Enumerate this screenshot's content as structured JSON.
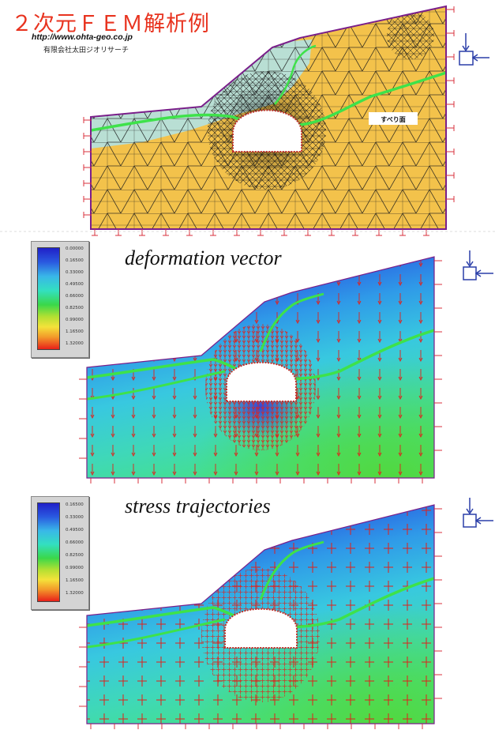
{
  "header": {
    "title": "２次元ＦＥＭ解析例",
    "url": "http://www.ohta-geo.co.jp",
    "company": "有限会社太田ジオリサーチ"
  },
  "panels": {
    "mesh": {
      "slip_label": "すべり面"
    },
    "deformation": {
      "heading": "deformation vector",
      "legend": [
        "0.00000",
        "0.16500",
        "0.33000",
        "0.49500",
        "0.66000",
        "0.82500",
        "0.99000",
        "1.16500",
        "1.32000"
      ]
    },
    "stress": {
      "heading": "stress trajectories",
      "legend": [
        "0.16500",
        "0.33000",
        "0.49500",
        "0.66000",
        "0.82500",
        "0.99000",
        "1.16500",
        "1.32000"
      ]
    }
  },
  "colors": {
    "title_red": "#e8331f",
    "soil_fill": "#f3c24b",
    "upper_layer": "#b9dfd4",
    "mesh_line": "#1a1a1a",
    "boundary": "#7a1f8a",
    "slip_line": "#3ee24a",
    "vector_red": "#e0201a",
    "icon_blue": "#2a3ea8"
  }
}
